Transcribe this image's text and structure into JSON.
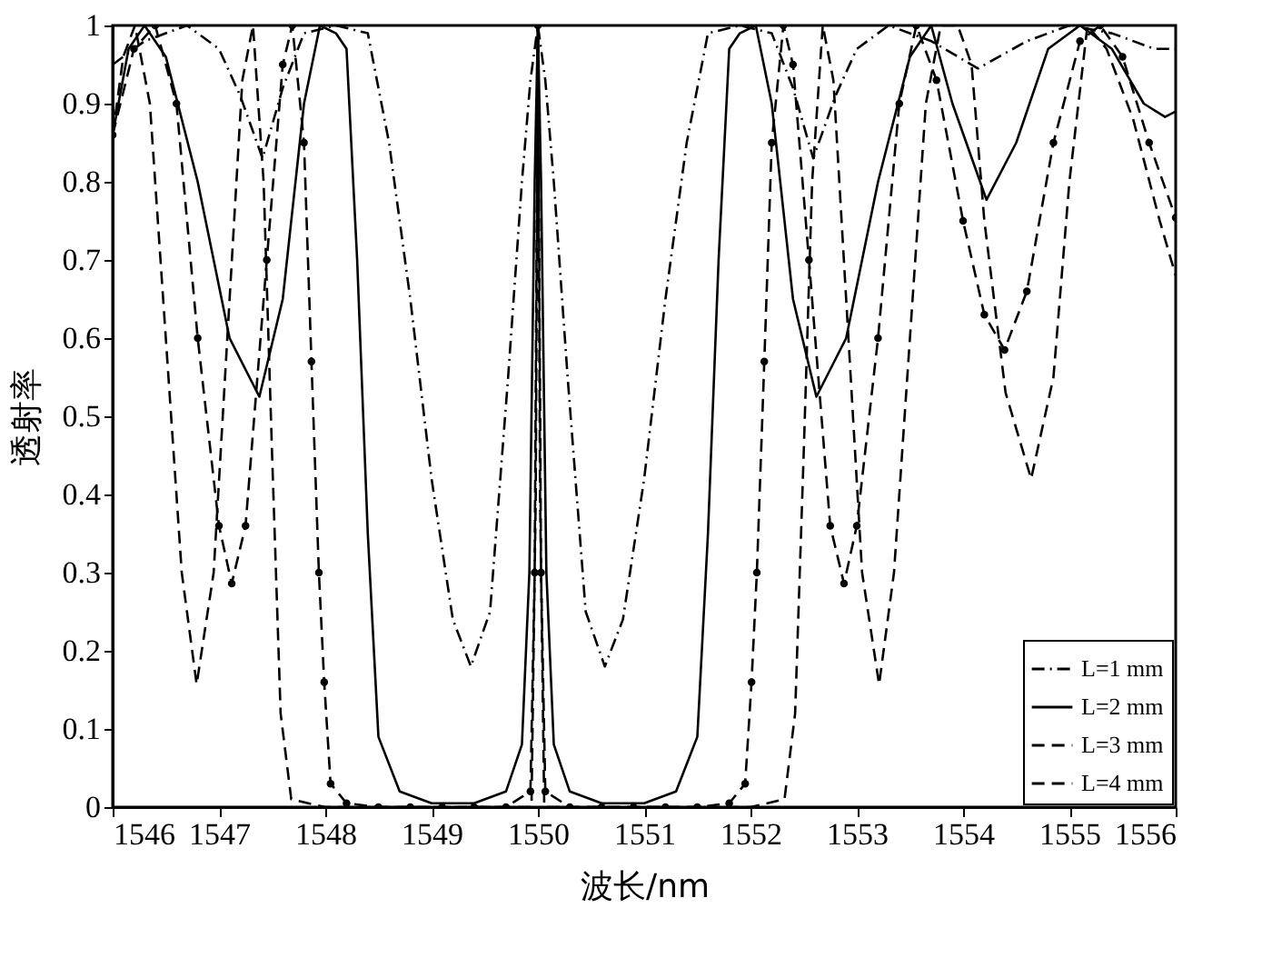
{
  "chart_data": {
    "type": "line",
    "xlabel": "波长/nm",
    "ylabel": "透射率",
    "xlim": [
      1546,
      1556
    ],
    "xticks": [
      1546,
      1547,
      1548,
      1549,
      1550,
      1551,
      1552,
      1553,
      1554,
      1555,
      1556
    ],
    "ylim": [
      0,
      1
    ],
    "yticks": [
      0,
      0.1,
      0.2,
      0.3,
      0.4,
      0.5,
      0.6,
      0.7,
      0.8,
      0.9,
      1
    ],
    "grid": false,
    "legend": "bottom right",
    "series": [
      {
        "name": "L=1 mm",
        "color": "#000000",
        "line_style": "dashdot",
        "marker": "none",
        "x": [
          1546.0,
          1546.3,
          1546.7,
          1547.0,
          1547.2,
          1547.41,
          1547.6,
          1547.8,
          1548.1,
          1548.4,
          1548.6,
          1548.8,
          1549.0,
          1549.2,
          1549.37,
          1549.55,
          1549.72,
          1549.85,
          1549.93,
          1550.0,
          1550.07,
          1550.15,
          1550.28,
          1550.45,
          1550.63,
          1550.8,
          1551.0,
          1551.2,
          1551.4,
          1551.6,
          1551.9,
          1552.2,
          1552.4,
          1552.59,
          1552.8,
          1553.0,
          1553.3,
          1553.7,
          1554.14,
          1554.6,
          1555.0,
          1555.4,
          1555.8,
          1556.0
        ],
        "values": [
          0.95,
          0.98,
          1.0,
          0.97,
          0.91,
          0.83,
          0.92,
          0.99,
          1.0,
          0.99,
          0.85,
          0.65,
          0.42,
          0.24,
          0.18,
          0.25,
          0.55,
          0.8,
          0.93,
          1.0,
          0.93,
          0.8,
          0.55,
          0.25,
          0.18,
          0.24,
          0.42,
          0.65,
          0.85,
          0.99,
          1.0,
          0.99,
          0.92,
          0.83,
          0.91,
          0.97,
          1.0,
          0.98,
          0.945,
          0.98,
          1.0,
          0.99,
          0.97,
          0.97
        ]
      },
      {
        "name": "L=2 mm",
        "color": "#000000",
        "line_style": "solid",
        "marker": "none",
        "x": [
          1546.0,
          1546.15,
          1546.3,
          1546.5,
          1546.8,
          1547.1,
          1547.38,
          1547.6,
          1547.8,
          1547.95,
          1548.1,
          1548.2,
          1548.3,
          1548.4,
          1548.5,
          1548.7,
          1549.0,
          1549.4,
          1549.7,
          1549.85,
          1549.92,
          1549.97,
          1550.0,
          1550.03,
          1550.08,
          1550.15,
          1550.3,
          1550.6,
          1551.0,
          1551.3,
          1551.5,
          1551.6,
          1551.7,
          1551.8,
          1551.9,
          1552.05,
          1552.2,
          1552.4,
          1552.62,
          1552.9,
          1553.2,
          1553.5,
          1553.7,
          1553.9,
          1554.22,
          1554.5,
          1554.8,
          1555.1,
          1555.4,
          1555.7,
          1555.9,
          1556.0
        ],
        "values": [
          0.86,
          0.97,
          1.0,
          0.96,
          0.8,
          0.6,
          0.525,
          0.65,
          0.9,
          1.0,
          0.99,
          0.97,
          0.7,
          0.35,
          0.09,
          0.02,
          0.005,
          0.005,
          0.02,
          0.08,
          0.3,
          0.8,
          1.0,
          0.8,
          0.3,
          0.08,
          0.02,
          0.005,
          0.005,
          0.02,
          0.09,
          0.35,
          0.7,
          0.97,
          0.99,
          1.0,
          0.9,
          0.65,
          0.525,
          0.6,
          0.8,
          0.96,
          1.0,
          0.9,
          0.777,
          0.85,
          0.97,
          1.0,
          0.97,
          0.9,
          0.883,
          0.89
        ]
      },
      {
        "name": "L=3 mm",
        "color": "#000000",
        "line_style": "dashed",
        "marker": "circle",
        "x": [
          1546.0,
          1546.2,
          1546.4,
          1546.6,
          1546.8,
          1547.0,
          1547.12,
          1547.25,
          1547.45,
          1547.6,
          1547.69,
          1547.8,
          1547.87,
          1547.94,
          1547.99,
          1548.05,
          1548.2,
          1548.5,
          1548.8,
          1549.1,
          1549.4,
          1549.7,
          1549.93,
          1549.97,
          1550.0,
          1550.03,
          1550.07,
          1550.3,
          1550.6,
          1550.9,
          1551.2,
          1551.5,
          1551.8,
          1551.95,
          1552.01,
          1552.06,
          1552.13,
          1552.2,
          1552.31,
          1552.4,
          1552.55,
          1552.75,
          1552.88,
          1553.0,
          1553.2,
          1553.4,
          1553.56,
          1553.75,
          1554.0,
          1554.2,
          1554.39,
          1554.6,
          1554.85,
          1555.1,
          1555.29,
          1555.5,
          1555.75,
          1556.0
        ],
        "values": [
          0.86,
          0.97,
          1.0,
          0.9,
          0.6,
          0.36,
          0.286,
          0.36,
          0.7,
          0.95,
          1.0,
          0.85,
          0.57,
          0.3,
          0.16,
          0.03,
          0.005,
          0.0,
          0.0,
          0.0,
          0.0,
          0.0,
          0.02,
          0.3,
          1.0,
          0.3,
          0.02,
          0.0,
          0.0,
          0.0,
          0.0,
          0.0,
          0.005,
          0.03,
          0.16,
          0.3,
          0.57,
          0.85,
          1.0,
          0.95,
          0.7,
          0.36,
          0.286,
          0.36,
          0.6,
          0.9,
          1.0,
          0.93,
          0.75,
          0.63,
          0.585,
          0.66,
          0.85,
          0.98,
          1.0,
          0.96,
          0.85,
          0.754
        ]
      },
      {
        "name": "L=4 mm",
        "color": "#000000",
        "line_style": "dashed",
        "marker": "none",
        "x": [
          1546.0,
          1546.1,
          1546.21,
          1546.35,
          1546.5,
          1546.65,
          1546.79,
          1546.95,
          1547.1,
          1547.22,
          1547.32,
          1547.42,
          1547.5,
          1547.58,
          1547.68,
          1548.0,
          1548.5,
          1549.0,
          1549.5,
          1549.94,
          1549.98,
          1550.0,
          1550.02,
          1550.06,
          1550.5,
          1551.0,
          1551.5,
          1552.0,
          1552.32,
          1552.42,
          1552.5,
          1552.58,
          1552.68,
          1552.78,
          1552.9,
          1553.05,
          1553.21,
          1553.35,
          1553.5,
          1553.65,
          1553.79,
          1553.95,
          1554.08,
          1554.2,
          1554.4,
          1554.64,
          1554.85,
          1555.0,
          1555.17,
          1555.35,
          1555.6,
          1555.85,
          1556.0
        ],
        "values": [
          0.86,
          0.96,
          1.0,
          0.9,
          0.6,
          0.3,
          0.157,
          0.3,
          0.65,
          0.93,
          1.0,
          0.8,
          0.45,
          0.12,
          0.01,
          0.0,
          0.0,
          0.0,
          0.0,
          0.0,
          0.4,
          1.0,
          0.4,
          0.0,
          0.0,
          0.0,
          0.0,
          0.0,
          0.01,
          0.12,
          0.45,
          0.8,
          1.0,
          0.93,
          0.65,
          0.3,
          0.157,
          0.3,
          0.6,
          0.9,
          1.0,
          1.0,
          0.95,
          0.75,
          0.53,
          0.42,
          0.55,
          0.8,
          1.0,
          0.97,
          0.88,
          0.75,
          0.68
        ]
      }
    ]
  }
}
